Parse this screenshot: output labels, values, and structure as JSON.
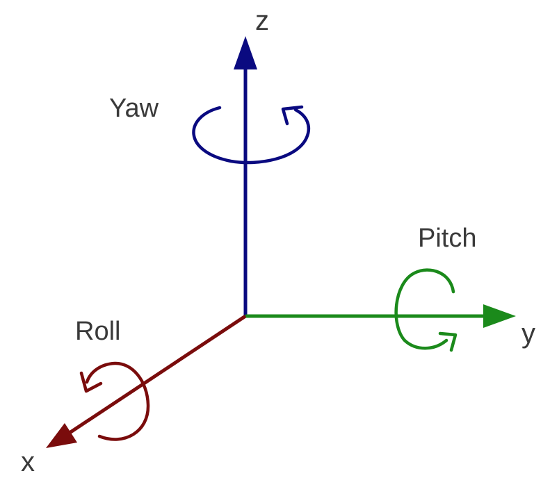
{
  "axes": {
    "z": {
      "label": "z",
      "color": "#0a0a80"
    },
    "y": {
      "label": "y",
      "color": "#1b8a1b"
    },
    "x": {
      "label": "x",
      "color": "#7a0c0c"
    }
  },
  "rotations": {
    "yaw": {
      "label": "Yaw",
      "color": "#0a0a80"
    },
    "pitch": {
      "label": "Pitch",
      "color": "#1b8a1b"
    },
    "roll": {
      "label": "Roll",
      "color": "#7a0c0c"
    }
  }
}
